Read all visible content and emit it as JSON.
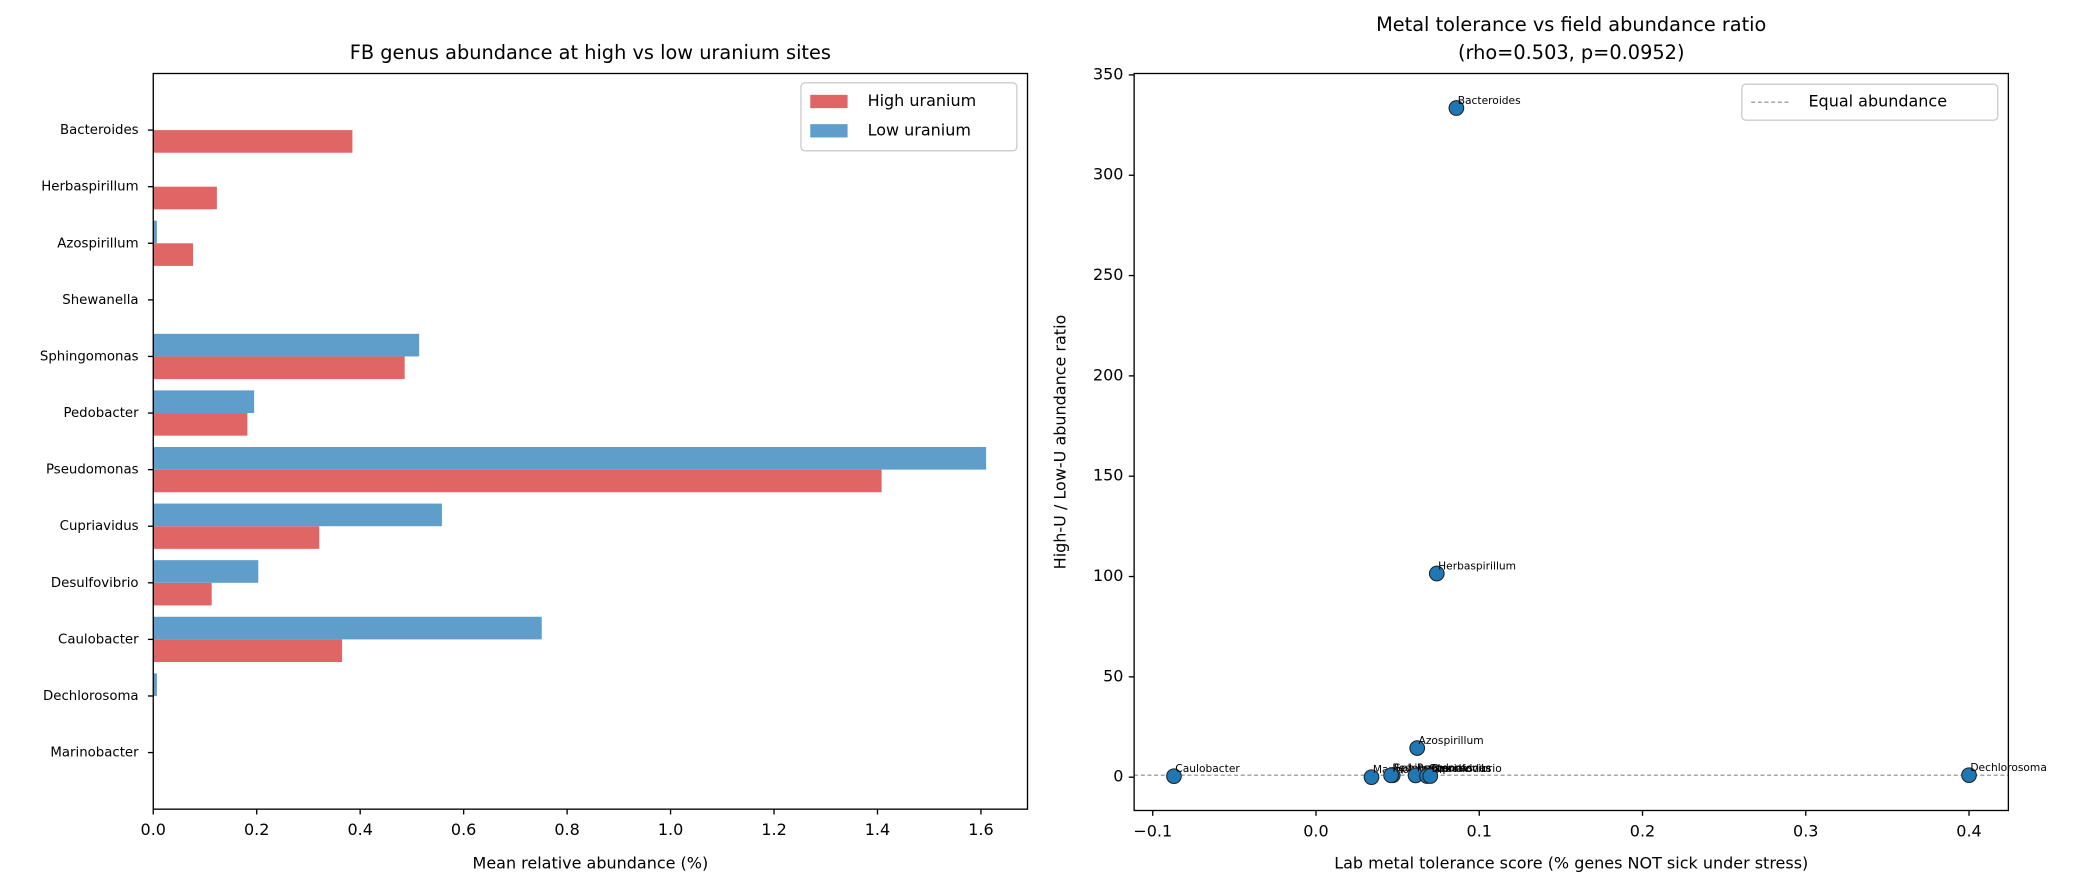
{
  "chart_data": [
    {
      "type": "bar",
      "orientation": "horizontal",
      "title": "FB genus abundance at high vs low uranium sites",
      "x_label": "Mean relative abundance (%)",
      "categories": [
        "Bacteroides",
        "Herbaspirillum",
        "Azospirillum",
        "Shewanella",
        "Sphingomonas",
        "Pedobacter",
        "Pseudomonas",
        "Cupriavidus",
        "Desulfovibrio",
        "Caulobacter",
        "Dechlorosoma",
        "Marinobacter"
      ],
      "series": [
        {
          "name": "High uranium",
          "color": "#e06666",
          "values": [
            0.385,
            0.123,
            0.077,
            0,
            0.486,
            0.182,
            1.408,
            0.321,
            0.113,
            0.365,
            0,
            0
          ]
        },
        {
          "name": "Low uranium",
          "color": "#5f9ecb",
          "values": [
            0.001,
            0,
            0.007,
            0,
            0.514,
            0.195,
            1.61,
            0.558,
            0.203,
            0.751,
            0.007,
            0
          ]
        }
      ],
      "xlim": [
        0,
        1.69
      ],
      "xticks": [
        {
          "value": 0,
          "label": "0.0"
        },
        {
          "value": 0.2,
          "label": "0.2"
        },
        {
          "value": 0.4,
          "label": "0.4"
        },
        {
          "value": 0.6,
          "label": "0.6"
        },
        {
          "value": 0.8,
          "label": "0.8"
        },
        {
          "value": 1.0,
          "label": "1.0"
        },
        {
          "value": 1.2,
          "label": "1.2"
        },
        {
          "value": 1.4,
          "label": "1.4"
        },
        {
          "value": 1.6,
          "label": "1.6"
        }
      ],
      "legend": "upper right"
    },
    {
      "type": "scatter",
      "title": "Metal tolerance vs field abundance ratio",
      "subtitle": "(rho=0.503, p=0.0952)",
      "x_label": "Lab metal tolerance score (% genes NOT sick under stress)",
      "y_label": "High-U / Low-U abundance ratio",
      "color": "#1f77b4",
      "labels": [
        "Bacteroides",
        "Herbaspirillum",
        "Azospirillum",
        "Caulobacter",
        "Dechlorosoma",
        "Marinobacter",
        "Sphingomonas",
        "Pedobacter",
        "Pseudomonas",
        "Cupriavidus",
        "Desulfovibrio"
      ],
      "x": [
        0.086,
        0.074,
        0.062,
        -0.087,
        0.4,
        0.034,
        0.047,
        0.046,
        0.061,
        0.068,
        0.07
      ],
      "values": [
        333.5,
        101.5,
        14.5,
        0.5,
        1,
        0,
        0.95,
        0.93,
        0.87,
        0.58,
        0.56
      ],
      "reference_line": {
        "label": "Equal abundance",
        "value": 1,
        "color": "#888888"
      },
      "xlim": [
        -0.1114,
        0.4241
      ],
      "xticks": [
        {
          "value": -0.1,
          "label": "−0.1"
        },
        {
          "value": 0,
          "label": "0.0"
        },
        0.1,
        0.2,
        0.3,
        0.4
      ],
      "ylim": [
        -16.6,
        350.7
      ],
      "yticks": [
        0,
        50,
        100,
        150,
        200,
        250,
        300,
        350
      ],
      "legend": "upper right"
    }
  ]
}
